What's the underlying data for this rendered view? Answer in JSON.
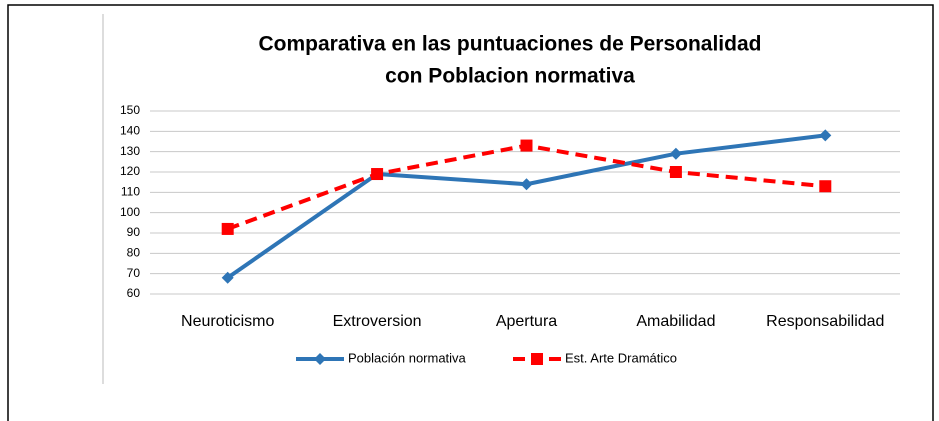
{
  "chart_data": {
    "type": "line",
    "title": [
      "Comparativa en las puntuaciones de Personalidad",
      "con Poblacion normativa"
    ],
    "categories": [
      "Neuroticismo",
      "Extroversion",
      "Apertura",
      "Amabilidad",
      "Responsabilidad"
    ],
    "series": [
      {
        "name": "Población normativa",
        "color": "#2e75b6",
        "values": [
          68,
          119,
          114,
          129,
          138
        ]
      },
      {
        "name": "Est. Arte Dramático",
        "color": "#ff0000",
        "values": [
          92,
          119,
          133,
          120,
          113
        ]
      }
    ],
    "ylim": [
      60,
      150
    ],
    "yticks": [
      60,
      70,
      80,
      90,
      100,
      110,
      120,
      130,
      140,
      150
    ],
    "grid": true,
    "legend": "bottom"
  }
}
